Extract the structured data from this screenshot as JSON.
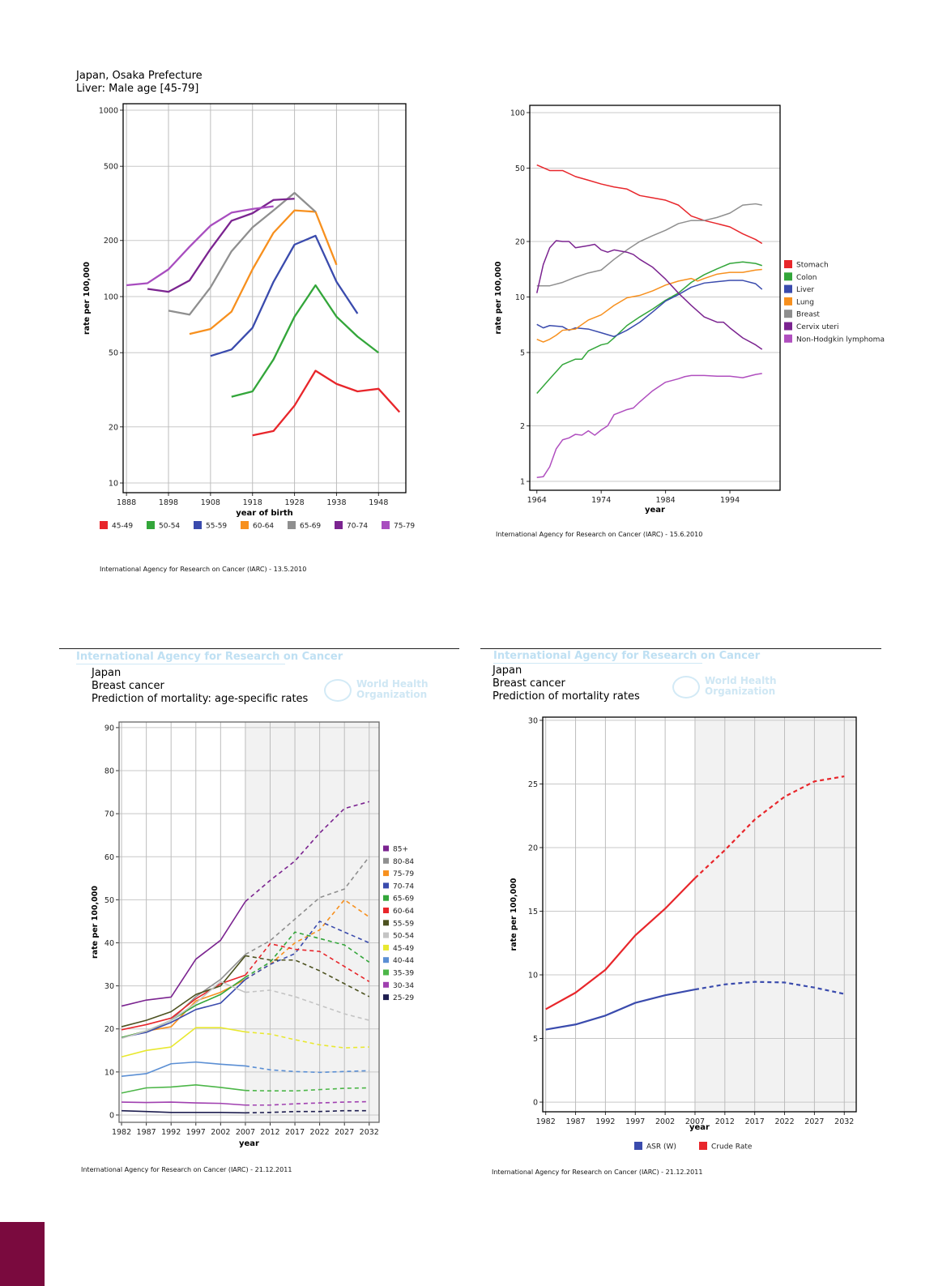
{
  "page": {
    "footers": [
      "International Agency for Research on Cancer (IARC) - 13.5.2010",
      "International Agency for Research on Cancer (IARC) - 15.6.2010",
      "International Agency for Research on Cancer (IARC) - 21.12.2011",
      "International Agency for Research on Cancer (IARC) - 21.12.2011"
    ],
    "watermark": {
      "agency": "International Agency for Research on Cancer",
      "who_line1": "World Health",
      "who_line2": "Organization"
    },
    "accent_color": "#7a0a3e"
  },
  "chart_data": [
    {
      "type": "line",
      "title_lines": [
        "Japan, Osaka Prefecture",
        "Liver: Male age [45-79]"
      ],
      "xlabel": "year of birth",
      "ylabel": "rate per 100,000",
      "y_scale": "log",
      "x_range": [
        1887.2,
        1954.5
      ],
      "y_range": [
        8.87,
        1083
      ],
      "x_ticks": [
        1888,
        1898,
        1908,
        1918,
        1928,
        1938,
        1948
      ],
      "y_ticks": [
        10,
        20,
        50,
        100,
        200,
        500,
        1000
      ],
      "grid": "both",
      "legend_position": "bottom",
      "series": [
        {
          "name": "45-49",
          "color": "#e8262b",
          "x": [
            1918,
            1923,
            1928,
            1933,
            1938,
            1943,
            1948,
            1953
          ],
          "y": [
            18,
            19,
            26,
            40,
            34,
            31,
            32,
            24
          ]
        },
        {
          "name": "50-54",
          "color": "#33a63a",
          "x": [
            1913,
            1918,
            1923,
            1928,
            1933,
            1938,
            1943,
            1948
          ],
          "y": [
            29,
            31,
            46,
            78,
            115,
            78,
            61,
            50
          ]
        },
        {
          "name": "55-59",
          "color": "#3a4bad",
          "x": [
            1908,
            1913,
            1918,
            1923,
            1928,
            1933,
            1938,
            1943
          ],
          "y": [
            48,
            52,
            68,
            120,
            190,
            212,
            120,
            81
          ]
        },
        {
          "name": "60-64",
          "color": "#f7901e",
          "x": [
            1903,
            1908,
            1913,
            1918,
            1923,
            1928,
            1933,
            1938
          ],
          "y": [
            63,
            67,
            83,
            140,
            220,
            290,
            285,
            148
          ]
        },
        {
          "name": "65-69",
          "color": "#8f8f8f",
          "x": [
            1898,
            1903,
            1908,
            1913,
            1918,
            1923,
            1928,
            1933
          ],
          "y": [
            84,
            80,
            112,
            175,
            235,
            290,
            360,
            285
          ]
        },
        {
          "name": "70-74",
          "color": "#7b2490",
          "x": [
            1893,
            1898,
            1903,
            1908,
            1913,
            1918,
            1923,
            1928
          ],
          "y": [
            110,
            106,
            122,
            180,
            255,
            280,
            330,
            335
          ]
        },
        {
          "name": "75-79",
          "color": "#a84dbf",
          "x": [
            1888,
            1893,
            1898,
            1903,
            1908,
            1913,
            1918,
            1923
          ],
          "y": [
            115,
            118,
            140,
            185,
            240,
            282,
            295,
            305
          ]
        }
      ]
    },
    {
      "type": "line",
      "title_lines": [],
      "xlabel": "year",
      "ylabel": "rate per 100,000",
      "y_scale": "log",
      "x_range": [
        1962.9,
        2001.8
      ],
      "y_range": [
        0.895,
        109.5
      ],
      "x_ticks": [
        1964,
        1974,
        1984,
        1994
      ],
      "y_ticks": [
        1,
        2,
        5,
        10,
        20,
        50,
        100
      ],
      "grid": "horizontal",
      "legend_position": "right",
      "series": [
        {
          "name": "Stomach",
          "color": "#e8262b",
          "x": [
            1964,
            1966,
            1968,
            1970,
            1972,
            1974,
            1976,
            1978,
            1980,
            1982,
            1984,
            1986,
            1988,
            1990,
            1992,
            1994,
            1996,
            1998,
            1999
          ],
          "y": [
            52,
            48.5,
            48.5,
            45,
            43,
            41,
            39.5,
            38.5,
            35.5,
            34.5,
            33.5,
            31.5,
            27.5,
            26,
            25,
            24,
            22,
            20.5,
            19.5
          ]
        },
        {
          "name": "Colon",
          "color": "#33a63a",
          "x": [
            1964,
            1966,
            1968,
            1970,
            1971,
            1972,
            1974,
            1975,
            1976,
            1978,
            1980,
            1982,
            1984,
            1986,
            1988,
            1990,
            1992,
            1994,
            1996,
            1998,
            1999
          ],
          "y": [
            3,
            3.6,
            4.3,
            4.6,
            4.6,
            5.1,
            5.5,
            5.6,
            6.0,
            7.0,
            7.8,
            8.6,
            9.6,
            10.5,
            12,
            13.2,
            14.2,
            15.2,
            15.5,
            15.2,
            14.8
          ]
        },
        {
          "name": "Liver",
          "color": "#3a4bad",
          "x": [
            1964,
            1965,
            1966,
            1968,
            1969,
            1970,
            1972,
            1974,
            1976,
            1978,
            1980,
            1982,
            1984,
            1986,
            1988,
            1990,
            1992,
            1994,
            1996,
            1998,
            1999
          ],
          "y": [
            7.1,
            6.8,
            7,
            6.9,
            6.6,
            6.8,
            6.7,
            6.4,
            6.1,
            6.6,
            7.3,
            8.3,
            9.5,
            10.3,
            11.3,
            11.9,
            12.1,
            12.3,
            12.3,
            11.8,
            11
          ]
        },
        {
          "name": "Lung",
          "color": "#f7901e",
          "x": [
            1964,
            1965,
            1966,
            1967,
            1968,
            1970,
            1972,
            1974,
            1976,
            1978,
            1980,
            1982,
            1984,
            1986,
            1988,
            1989,
            1990,
            1992,
            1994,
            1996,
            1998,
            1999
          ],
          "y": [
            5.9,
            5.7,
            5.9,
            6.2,
            6.6,
            6.7,
            7.5,
            8.0,
            9.0,
            9.9,
            10.2,
            10.8,
            11.6,
            12.2,
            12.6,
            12.2,
            12.6,
            13.3,
            13.6,
            13.6,
            14.0,
            14.1
          ]
        },
        {
          "name": "Breast",
          "color": "#8f8f8f",
          "x": [
            1964,
            1966,
            1968,
            1970,
            1972,
            1974,
            1976,
            1978,
            1980,
            1982,
            1984,
            1986,
            1988,
            1990,
            1992,
            1994,
            1996,
            1998,
            1999
          ],
          "y": [
            11.5,
            11.5,
            12,
            12.8,
            13.5,
            14,
            16,
            18,
            20,
            21.5,
            23,
            25,
            26,
            26,
            27,
            28.5,
            31.5,
            32,
            31.5
          ]
        },
        {
          "name": "Cervix uteri",
          "color": "#7b2490",
          "x": [
            1964,
            1965,
            1966,
            1967,
            1968,
            1969,
            1970,
            1972,
            1973,
            1974,
            1975,
            1976,
            1978,
            1979,
            1980,
            1982,
            1984,
            1986,
            1988,
            1990,
            1992,
            1993,
            1994,
            1996,
            1998,
            1999
          ],
          "y": [
            10.5,
            15,
            18.5,
            20.2,
            20,
            20,
            18.5,
            19,
            19.3,
            18,
            17.5,
            18,
            17.5,
            17,
            16,
            14.5,
            12.5,
            10.5,
            9,
            7.8,
            7.3,
            7.3,
            6.8,
            6,
            5.5,
            5.2
          ]
        },
        {
          "name": "Non-Hodgkin lymphoma",
          "color": "#b04fbf",
          "x": [
            1964,
            1965,
            1966,
            1967,
            1968,
            1969,
            1970,
            1971,
            1972,
            1973,
            1974,
            1975,
            1976,
            1978,
            1979,
            1980,
            1982,
            1984,
            1986,
            1987,
            1988,
            1990,
            1992,
            1994,
            1996,
            1998,
            1999
          ],
          "y": [
            1.05,
            1.06,
            1.2,
            1.5,
            1.68,
            1.72,
            1.8,
            1.78,
            1.88,
            1.78,
            1.9,
            2.0,
            2.3,
            2.45,
            2.5,
            2.7,
            3.1,
            3.45,
            3.6,
            3.7,
            3.75,
            3.75,
            3.72,
            3.72,
            3.65,
            3.8,
            3.85
          ]
        }
      ]
    },
    {
      "type": "line",
      "title_lines": [
        "Japan",
        "Breast cancer",
        "Prediction of mortality: age-specific rates"
      ],
      "xlabel": "year",
      "ylabel": "rate per 100,000",
      "y_scale": "linear",
      "x_range": [
        1981.5,
        2034
      ],
      "y_range": [
        -1.7,
        91.3
      ],
      "x_ticks": [
        1982,
        1987,
        1992,
        1997,
        2002,
        2007,
        2012,
        2017,
        2022,
        2027,
        2032
      ],
      "y_ticks": [
        0,
        10,
        20,
        30,
        40,
        50,
        60,
        70,
        80,
        90
      ],
      "grid": "both",
      "projection_from": 2007,
      "legend_position": "right",
      "x": [
        1982,
        1987,
        1992,
        1997,
        2002,
        2007,
        2012,
        2017,
        2022,
        2027,
        2032
      ],
      "series": [
        {
          "name": "85+",
          "color": "#7b2490",
          "y": [
            25.3,
            26.7,
            27.4,
            36.2,
            40.6,
            49.6,
            54.5,
            59,
            65.5,
            71.2,
            72.8
          ]
        },
        {
          "name": "80-84",
          "color": "#8f8f8f",
          "y": [
            18,
            19.3,
            22,
            27.5,
            31.5,
            37.3,
            40.5,
            45.5,
            50.5,
            52.5,
            60
          ]
        },
        {
          "name": "75-79",
          "color": "#f7901e",
          "y": [
            18,
            19.5,
            20.5,
            26.5,
            28.5,
            31.5,
            35,
            40,
            43,
            50,
            46
          ]
        },
        {
          "name": "70-74",
          "color": "#3a4bad",
          "y": [
            18,
            19.2,
            21.5,
            24.5,
            26,
            31.5,
            35,
            37.5,
            45,
            42.5,
            40
          ]
        },
        {
          "name": "65-69",
          "color": "#33a63a",
          "y": [
            18,
            19.5,
            22,
            25.5,
            28,
            32,
            35.5,
            42.5,
            41,
            39.5,
            35.5
          ]
        },
        {
          "name": "60-64",
          "color": "#e8262b",
          "y": [
            19.8,
            21,
            22.5,
            27,
            30.5,
            32.5,
            39.8,
            38.5,
            38,
            34.5,
            31
          ]
        },
        {
          "name": "55-59",
          "color": "#4d5220",
          "y": [
            20.5,
            22,
            24,
            28,
            30,
            37,
            36,
            36,
            33.5,
            30.5,
            27.5
          ]
        },
        {
          "name": "50-54",
          "color": "#c4c4c4",
          "y": [
            17.8,
            19.5,
            22,
            26,
            31,
            28.5,
            29,
            27.5,
            25.5,
            23.5,
            22
          ]
        },
        {
          "name": "45-49",
          "color": "#e8e830",
          "y": [
            13.5,
            15,
            15.8,
            20.3,
            20.3,
            19.3,
            18.8,
            17.5,
            16.3,
            15.6,
            15.8
          ]
        },
        {
          "name": "40-44",
          "color": "#5b8fd4",
          "y": [
            9,
            9.6,
            11.9,
            12.3,
            11.8,
            11.4,
            10.5,
            10.1,
            9.9,
            10.1,
            10.3
          ]
        },
        {
          "name": "35-39",
          "color": "#4cb648",
          "y": [
            5.1,
            6.3,
            6.5,
            7.0,
            6.4,
            5.7,
            5.6,
            5.6,
            5.9,
            6.2,
            6.3
          ]
        },
        {
          "name": "30-34",
          "color": "#a040b0",
          "y": [
            3.0,
            2.9,
            3.0,
            2.8,
            2.7,
            2.3,
            2.3,
            2.6,
            2.8,
            3.0,
            3.1
          ]
        },
        {
          "name": "25-29",
          "color": "#1e1e50",
          "y": [
            1.0,
            0.8,
            0.6,
            0.6,
            0.6,
            0.5,
            0.6,
            0.8,
            0.8,
            1.0,
            1.0
          ]
        }
      ]
    },
    {
      "type": "line",
      "title_lines": [
        "Japan",
        "Breast cancer",
        "Prediction of mortality rates"
      ],
      "xlabel": "year",
      "ylabel": "rate per 100,000",
      "y_scale": "linear",
      "x_range": [
        1981.5,
        2034
      ],
      "y_range": [
        -0.76,
        30.25
      ],
      "x_ticks": [
        1982,
        1987,
        1992,
        1997,
        2002,
        2007,
        2012,
        2017,
        2022,
        2027,
        2032
      ],
      "y_ticks": [
        0,
        5,
        10,
        15,
        20,
        25,
        30
      ],
      "grid": "both",
      "projection_from": 2007,
      "legend_position": "bottom",
      "x": [
        1982,
        1987,
        1992,
        1997,
        2002,
        2007,
        2012,
        2017,
        2022,
        2027,
        2032
      ],
      "series": [
        {
          "name": "ASR (W)",
          "color": "#3a4bad",
          "y": [
            5.7,
            6.1,
            6.8,
            7.8,
            8.4,
            8.85,
            9.25,
            9.45,
            9.4,
            9.0,
            8.5
          ]
        },
        {
          "name": "Crude Rate",
          "color": "#e8262b",
          "y": [
            7.3,
            8.6,
            10.4,
            13.1,
            15.2,
            17.6,
            19.8,
            22.2,
            24,
            25.2,
            25.6
          ]
        }
      ]
    }
  ]
}
